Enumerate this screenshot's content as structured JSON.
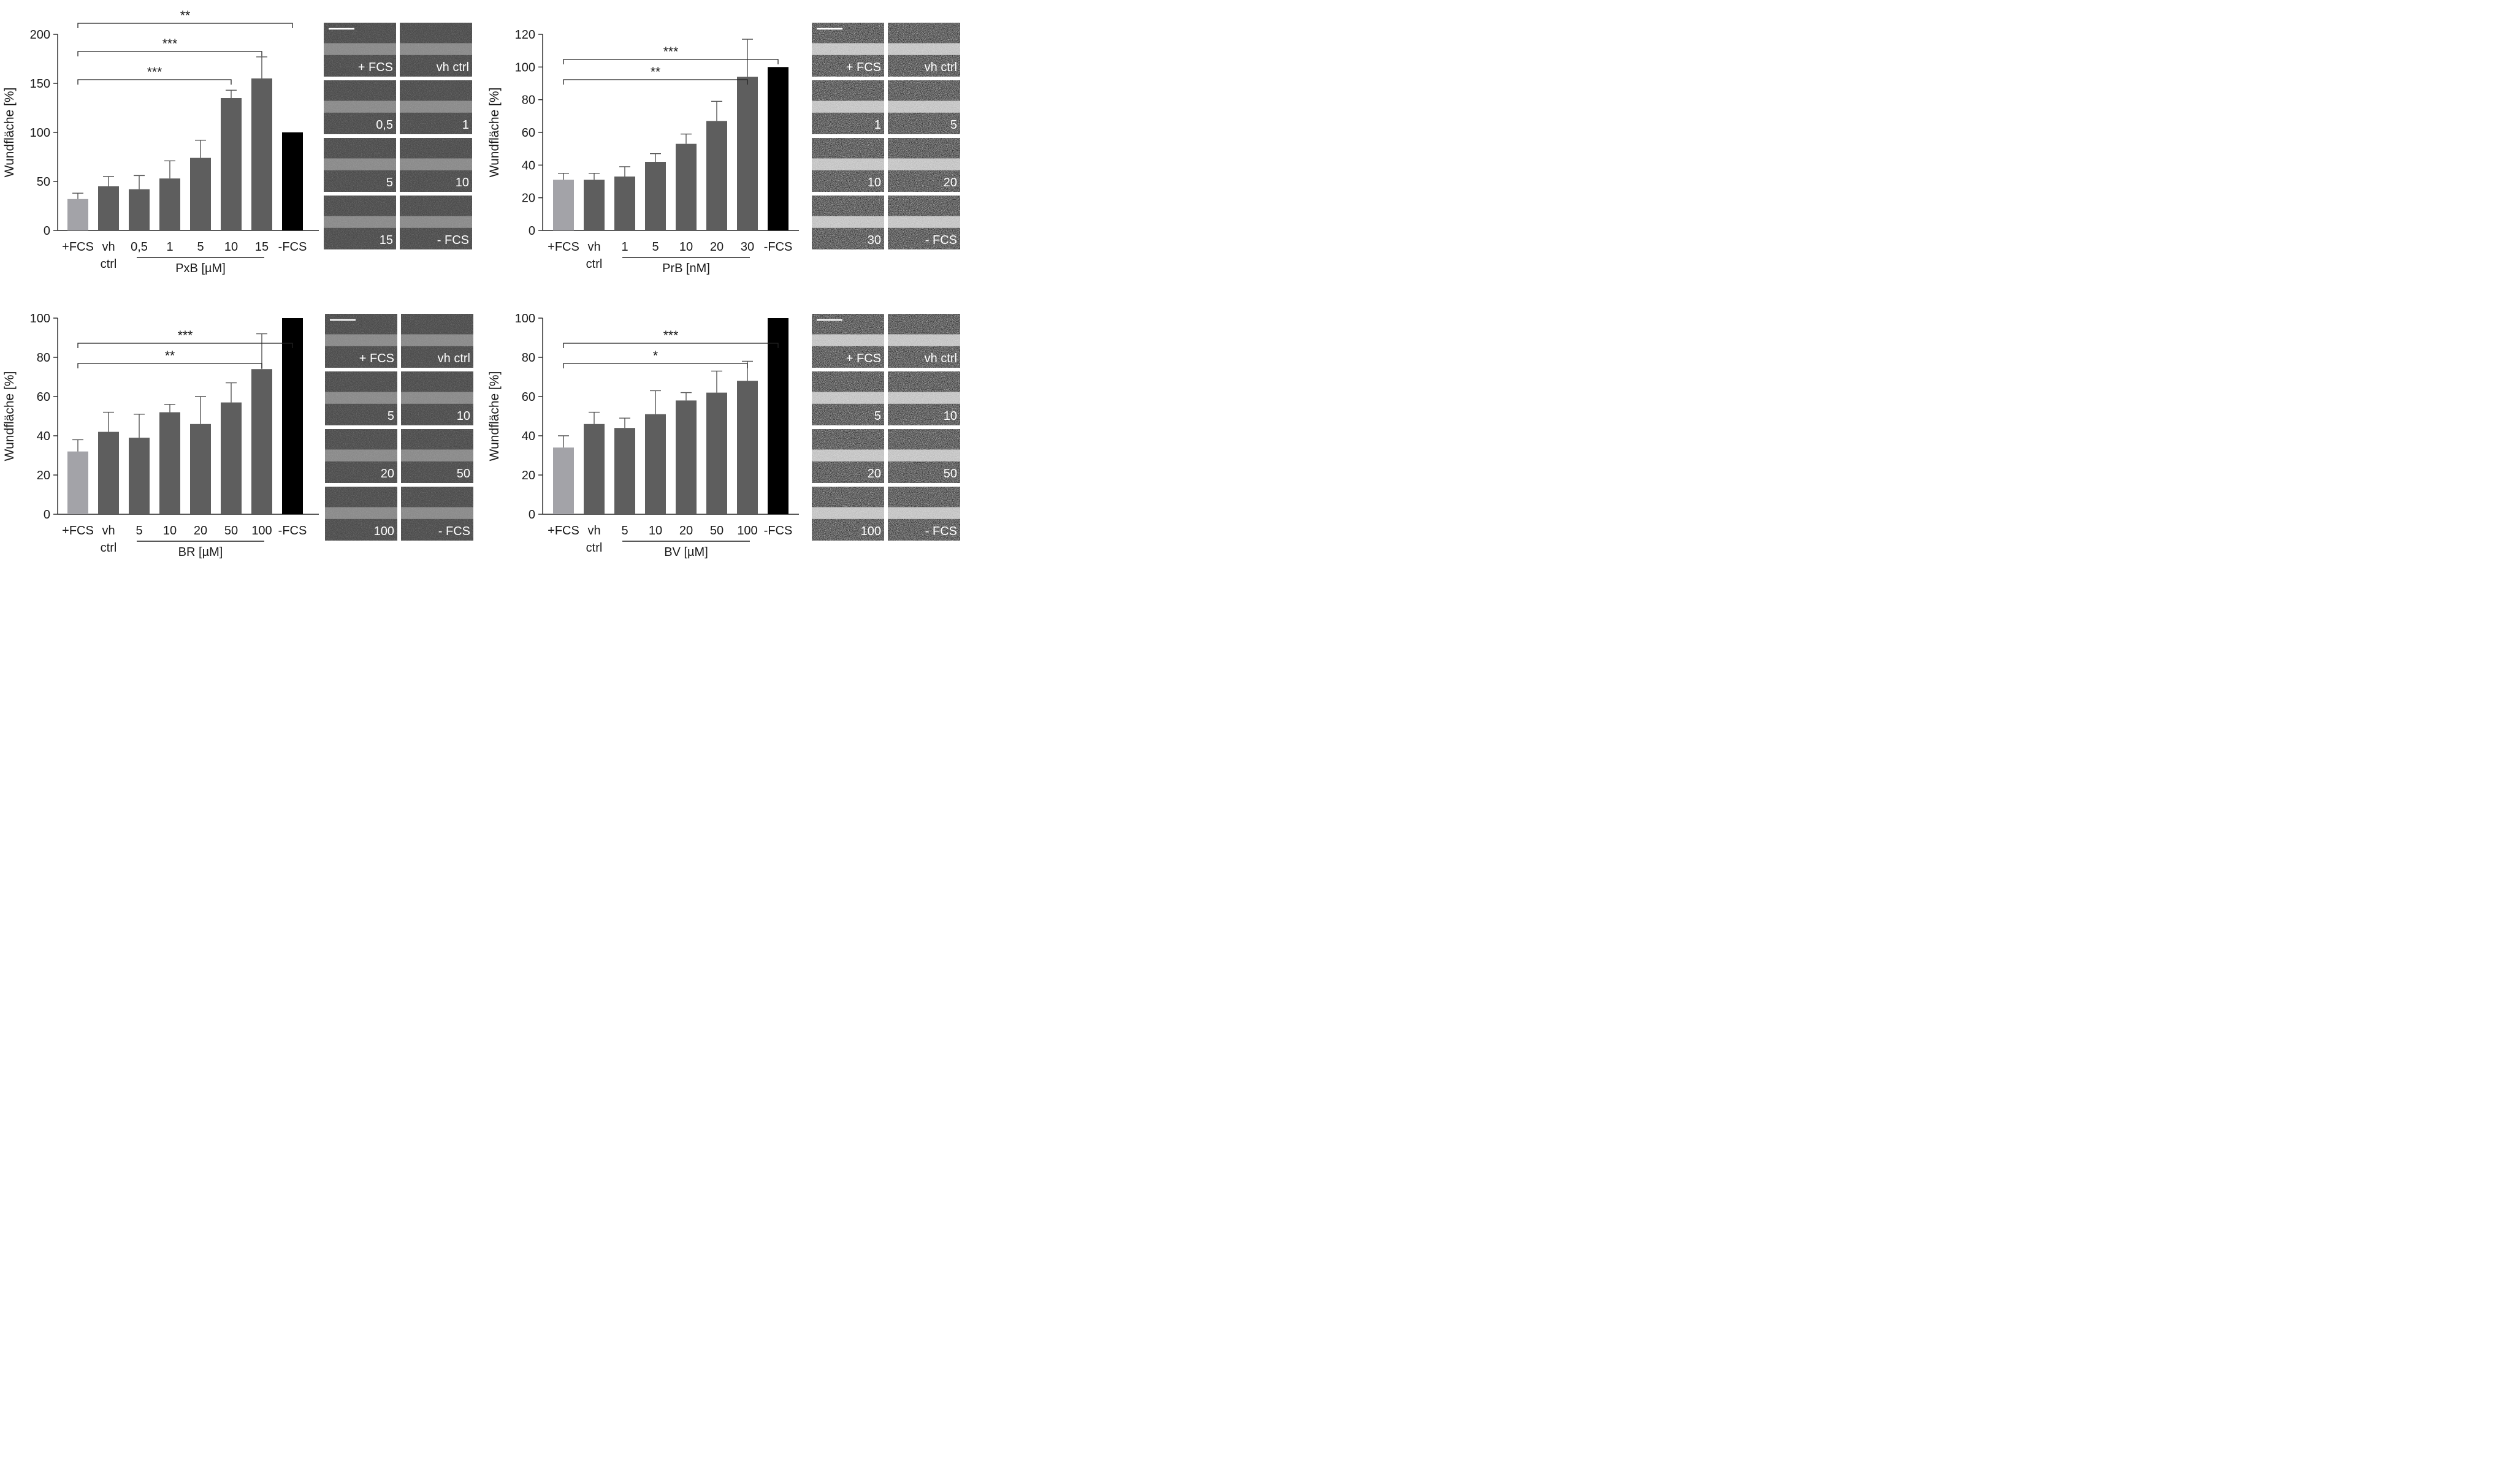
{
  "panels": [
    {
      "id": "pxb",
      "ylabel": "Wundfläche [%]",
      "unit_label": "PxB [µM]",
      "chart": {
        "type": "bar",
        "categories": [
          "+FCS",
          "vh\nctrl",
          "0,5",
          "1",
          "5",
          "10",
          "15",
          "-FCS"
        ],
        "values": [
          32,
          45,
          42,
          53,
          74,
          135,
          155,
          100
        ],
        "errors": [
          6,
          10,
          14,
          18,
          18,
          8,
          22,
          0
        ],
        "bar_colors": [
          "#a3a3a8",
          "#5e5e5e",
          "#5e5e5e",
          "#5e5e5e",
          "#5e5e5e",
          "#5e5e5e",
          "#5e5e5e",
          "#000000"
        ],
        "ylim": [
          0,
          200
        ],
        "yticks": [
          0,
          50,
          100,
          150,
          200
        ],
        "bracket_categories": [
          "0,5",
          "15"
        ],
        "significance": [
          {
            "from": "+FCS",
            "to": "10",
            "label": "***"
          },
          {
            "from": "+FCS",
            "to": "15",
            "label": "***"
          },
          {
            "from": "+FCS",
            "to": "-FCS",
            "label": "**"
          }
        ]
      },
      "micrographs": [
        "+ FCS",
        "vh ctrl",
        "0,5",
        "1",
        "5",
        "10",
        "15",
        "- FCS"
      ],
      "micro_tone": "dark"
    },
    {
      "id": "prb",
      "ylabel": "Wundfläche [%]",
      "unit_label": "PrB [nM]",
      "chart": {
        "type": "bar",
        "categories": [
          "+FCS",
          "vh\nctrl",
          "1",
          "5",
          "10",
          "20",
          "30",
          "-FCS"
        ],
        "values": [
          31,
          31,
          33,
          42,
          53,
          67,
          94,
          100
        ],
        "errors": [
          4,
          4,
          6,
          5,
          6,
          12,
          23,
          0
        ],
        "bar_colors": [
          "#a3a3a8",
          "#5e5e5e",
          "#5e5e5e",
          "#5e5e5e",
          "#5e5e5e",
          "#5e5e5e",
          "#5e5e5e",
          "#000000"
        ],
        "ylim": [
          0,
          120
        ],
        "yticks": [
          0,
          20,
          40,
          60,
          80,
          100,
          120
        ],
        "bracket_categories": [
          "1",
          "30"
        ],
        "significance": [
          {
            "from": "+FCS",
            "to": "30",
            "label": "**"
          },
          {
            "from": "+FCS",
            "to": "-FCS",
            "label": "***"
          }
        ]
      },
      "micrographs": [
        "+ FCS",
        "vh ctrl",
        "1",
        "5",
        "10",
        "20",
        "30",
        "- FCS"
      ],
      "micro_tone": "bright"
    },
    {
      "id": "br",
      "ylabel": "Wundfläche [%]",
      "unit_label": "BR [µM]",
      "chart": {
        "type": "bar",
        "categories": [
          "+FCS",
          "vh\nctrl",
          "5",
          "10",
          "20",
          "50",
          "100",
          "-FCS"
        ],
        "values": [
          32,
          42,
          39,
          52,
          46,
          57,
          74,
          100
        ],
        "errors": [
          6,
          10,
          12,
          4,
          14,
          10,
          18,
          0
        ],
        "bar_colors": [
          "#a3a3a8",
          "#5e5e5e",
          "#5e5e5e",
          "#5e5e5e",
          "#5e5e5e",
          "#5e5e5e",
          "#5e5e5e",
          "#000000"
        ],
        "ylim": [
          0,
          100
        ],
        "yticks": [
          0,
          20,
          40,
          60,
          80,
          100
        ],
        "bracket_categories": [
          "5",
          "100"
        ],
        "significance": [
          {
            "from": "+FCS",
            "to": "100",
            "label": "**"
          },
          {
            "from": "+FCS",
            "to": "-FCS",
            "label": "***"
          }
        ]
      },
      "micrographs": [
        "+ FCS",
        "vh ctrl",
        "5",
        "10",
        "20",
        "50",
        "100",
        "- FCS"
      ],
      "micro_tone": "dark"
    },
    {
      "id": "bv",
      "ylabel": "Wundfläche [%]",
      "unit_label": "BV [µM]",
      "chart": {
        "type": "bar",
        "categories": [
          "+FCS",
          "vh\nctrl",
          "5",
          "10",
          "20",
          "50",
          "100",
          "-FCS"
        ],
        "values": [
          34,
          46,
          44,
          51,
          58,
          62,
          68,
          100
        ],
        "errors": [
          6,
          6,
          5,
          12,
          4,
          11,
          10,
          0
        ],
        "bar_colors": [
          "#a3a3a8",
          "#5e5e5e",
          "#5e5e5e",
          "#5e5e5e",
          "#5e5e5e",
          "#5e5e5e",
          "#5e5e5e",
          "#000000"
        ],
        "ylim": [
          0,
          100
        ],
        "yticks": [
          0,
          20,
          40,
          60,
          80,
          100
        ],
        "bracket_categories": [
          "5",
          "100"
        ],
        "significance": [
          {
            "from": "+FCS",
            "to": "100",
            "label": "*"
          },
          {
            "from": "+FCS",
            "to": "-FCS",
            "label": "***"
          }
        ]
      },
      "micrographs": [
        "+ FCS",
        "vh ctrl",
        "5",
        "10",
        "20",
        "50",
        "100",
        "- FCS"
      ],
      "micro_tone": "bright"
    }
  ],
  "chart_data": [
    {
      "type": "bar",
      "categories": [
        "+FCS",
        "vh ctrl",
        "0,5",
        "1",
        "5",
        "10",
        "15",
        "-FCS"
      ],
      "values": [
        32,
        45,
        42,
        53,
        74,
        135,
        155,
        100
      ],
      "errors": [
        6,
        10,
        14,
        18,
        18,
        8,
        22,
        0
      ],
      "ylabel": "Wundfläche [%]",
      "xlabel": "PxB [µM]",
      "ylim": [
        0,
        200
      ]
    },
    {
      "type": "bar",
      "categories": [
        "+FCS",
        "vh ctrl",
        "1",
        "5",
        "10",
        "20",
        "30",
        "-FCS"
      ],
      "values": [
        31,
        31,
        33,
        42,
        53,
        67,
        94,
        100
      ],
      "errors": [
        4,
        4,
        6,
        5,
        6,
        12,
        23,
        0
      ],
      "ylabel": "Wundfläche [%]",
      "xlabel": "PrB [nM]",
      "ylim": [
        0,
        120
      ]
    },
    {
      "type": "bar",
      "categories": [
        "+FCS",
        "vh ctrl",
        "5",
        "10",
        "20",
        "50",
        "100",
        "-FCS"
      ],
      "values": [
        32,
        42,
        39,
        52,
        46,
        57,
        74,
        100
      ],
      "errors": [
        6,
        10,
        12,
        4,
        14,
        10,
        18,
        0
      ],
      "ylabel": "Wundfläche [%]",
      "xlabel": "BR [µM]",
      "ylim": [
        0,
        100
      ]
    },
    {
      "type": "bar",
      "categories": [
        "+FCS",
        "vh ctrl",
        "5",
        "10",
        "20",
        "50",
        "100",
        "-FCS"
      ],
      "values": [
        34,
        46,
        44,
        51,
        58,
        62,
        68,
        100
      ],
      "errors": [
        6,
        6,
        5,
        12,
        4,
        11,
        10,
        0
      ],
      "ylabel": "Wundfläche [%]",
      "xlabel": "BV [µM]",
      "ylim": [
        0,
        100
      ]
    }
  ]
}
